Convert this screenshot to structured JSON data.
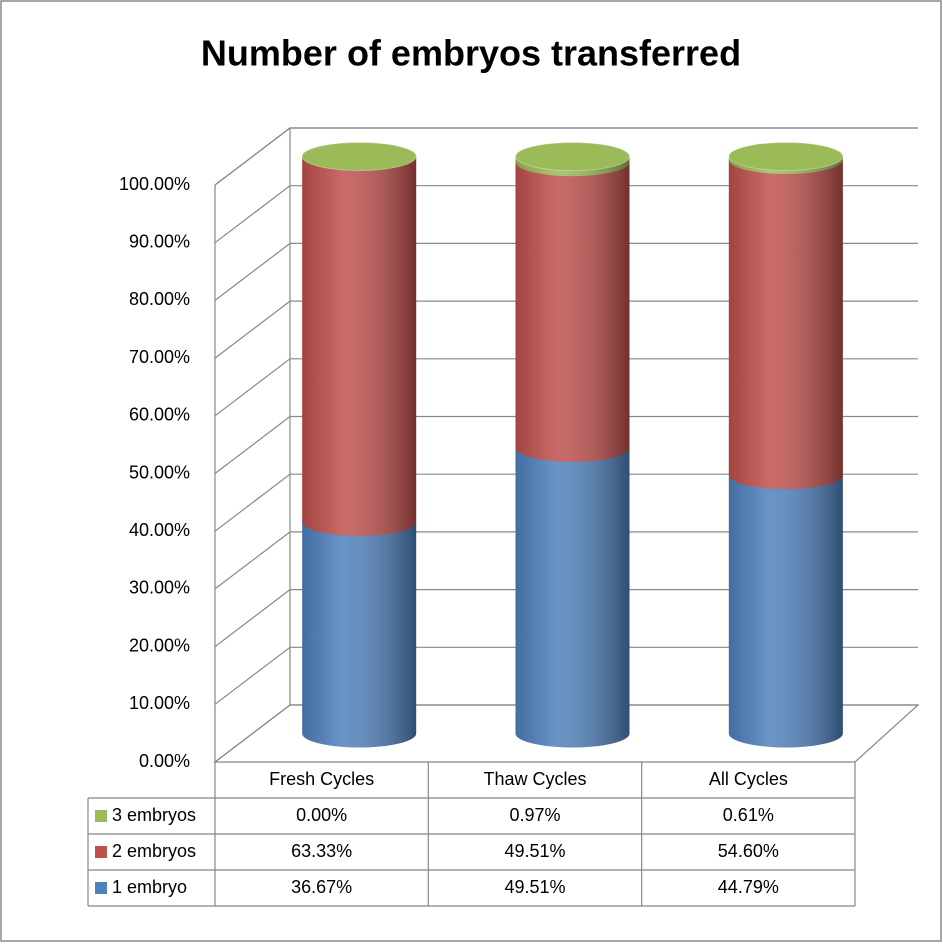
{
  "chart_data": {
    "type": "bar",
    "stacked": true,
    "title": "Number of embryos transferred",
    "categories": [
      "Fresh Cycles",
      "Thaw Cycles",
      "All Cycles"
    ],
    "series": [
      {
        "name": "1 embryo",
        "color": "#4f81bd",
        "values": [
          36.67,
          49.51,
          44.79
        ],
        "value_labels": [
          "36.67%",
          "49.51%",
          "44.79%"
        ]
      },
      {
        "name": "2 embryos",
        "color": "#c0504d",
        "values": [
          63.33,
          49.51,
          54.6
        ],
        "value_labels": [
          "63.33%",
          "49.51%",
          "54.60%"
        ]
      },
      {
        "name": "3 embryos",
        "color": "#9bbb59",
        "values": [
          0.0,
          0.97,
          0.61
        ],
        "value_labels": [
          "0.00%",
          "0.97%",
          "0.61%"
        ]
      }
    ],
    "ylim": [
      0,
      100
    ],
    "yticks": [
      {
        "value": 0,
        "label": "0.00%"
      },
      {
        "value": 10,
        "label": "10.00%"
      },
      {
        "value": 20,
        "label": "20.00%"
      },
      {
        "value": 30,
        "label": "30.00%"
      },
      {
        "value": 40,
        "label": "40.00%"
      },
      {
        "value": 50,
        "label": "50.00%"
      },
      {
        "value": 60,
        "label": "60.00%"
      },
      {
        "value": 70,
        "label": "70.00%"
      },
      {
        "value": 80,
        "label": "80.00%"
      },
      {
        "value": 90,
        "label": "90.00%"
      },
      {
        "value": 100,
        "label": "100.00%"
      }
    ],
    "grid": true,
    "legend": "table"
  }
}
